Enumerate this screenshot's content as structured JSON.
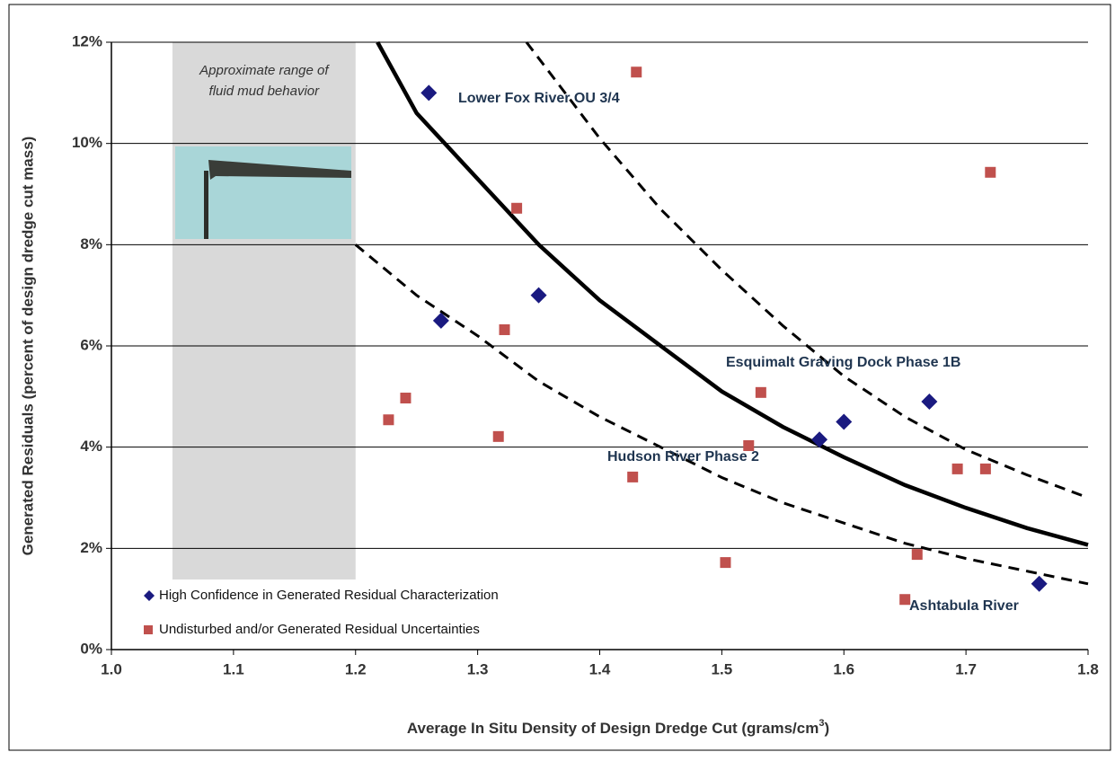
{
  "chart_data": {
    "type": "scatter",
    "x_label": "Average In Situ Density of Design Dredge Cut (grams/cm",
    "x_label_sup": "3",
    "x_label_end": ")",
    "y_label": "Generated Residuals (percent of design dredge cut mass)",
    "xlim": [
      1.0,
      1.8
    ],
    "ylim": [
      0,
      12
    ],
    "xticks": [
      {
        "value": 1,
        "label": "1.0"
      },
      1.1,
      1.2,
      1.3,
      1.4,
      1.5,
      1.6,
      1.7,
      1.8
    ],
    "yticks": [
      {
        "value": 0,
        "label": "0%"
      },
      {
        "value": 2,
        "label": "2%"
      },
      {
        "value": 4,
        "label": "4%"
      },
      {
        "value": 6,
        "label": "6%"
      },
      {
        "value": 8,
        "label": "8%"
      },
      {
        "value": 10,
        "label": "10%"
      },
      {
        "value": 12,
        "label": "12%"
      }
    ],
    "grid": true,
    "legend": "lower left",
    "series": [
      {
        "name": "High Confidence in Generated Residual Characterization",
        "color": "#1a1a80",
        "marker": "diamond",
        "x": [
          1.26,
          1.27,
          1.35,
          1.58,
          1.6,
          1.67,
          1.76
        ],
        "values": [
          11.0,
          6.5,
          7.0,
          4.15,
          4.5,
          4.9,
          1.3
        ]
      },
      {
        "name": "Undisturbed and/or Generated Residual Uncertainties",
        "color": "#c0504d",
        "marker": "square",
        "x": [
          1.227,
          1.241,
          1.317,
          1.322,
          1.332,
          1.427,
          1.43,
          1.503,
          1.522,
          1.532,
          1.65,
          1.66,
          1.693,
          1.716,
          1.72
        ],
        "values": [
          4.54,
          4.97,
          4.21,
          6.32,
          8.72,
          3.41,
          11.41,
          1.72,
          4.03,
          5.08,
          0.99,
          1.88,
          3.57,
          3.57,
          9.43
        ]
      }
    ],
    "curves": [
      {
        "style": "solid",
        "color": "#000000",
        "x": [
          1.218,
          1.25,
          1.3,
          1.35,
          1.4,
          1.45,
          1.5,
          1.55,
          1.6,
          1.65,
          1.7,
          1.75,
          1.8
        ],
        "values": [
          12,
          10.6,
          9.3,
          8.0,
          6.9,
          6.0,
          5.1,
          4.4,
          3.8,
          3.25,
          2.8,
          2.4,
          2.07
        ]
      },
      {
        "style": "dashed",
        "color": "#000000",
        "x": [
          1.34,
          1.4,
          1.45,
          1.5,
          1.55,
          1.6,
          1.65,
          1.7,
          1.75,
          1.8
        ],
        "values": [
          12,
          10.1,
          8.7,
          7.5,
          6.4,
          5.4,
          4.6,
          3.95,
          3.45,
          3.0
        ]
      },
      {
        "style": "dashed",
        "color": "#000000",
        "x": [
          1.2,
          1.25,
          1.3,
          1.35,
          1.4,
          1.45,
          1.5,
          1.55,
          1.6,
          1.65,
          1.7,
          1.75,
          1.8
        ],
        "values": [
          8.0,
          7.0,
          6.2,
          5.3,
          4.6,
          4.0,
          3.4,
          2.9,
          2.5,
          2.1,
          1.8,
          1.55,
          1.3
        ]
      }
    ],
    "shaded_xrange": [
      1.05,
      1.2
    ],
    "shaded_text": [
      "Approximate range of",
      "fluid mud behavior"
    ],
    "annotations": [
      "Lower Fox River OU 3/4",
      "Esquimalt Graving Dock Phase 1B",
      "Hudson River Phase 2",
      "Ashtabula River"
    ]
  }
}
